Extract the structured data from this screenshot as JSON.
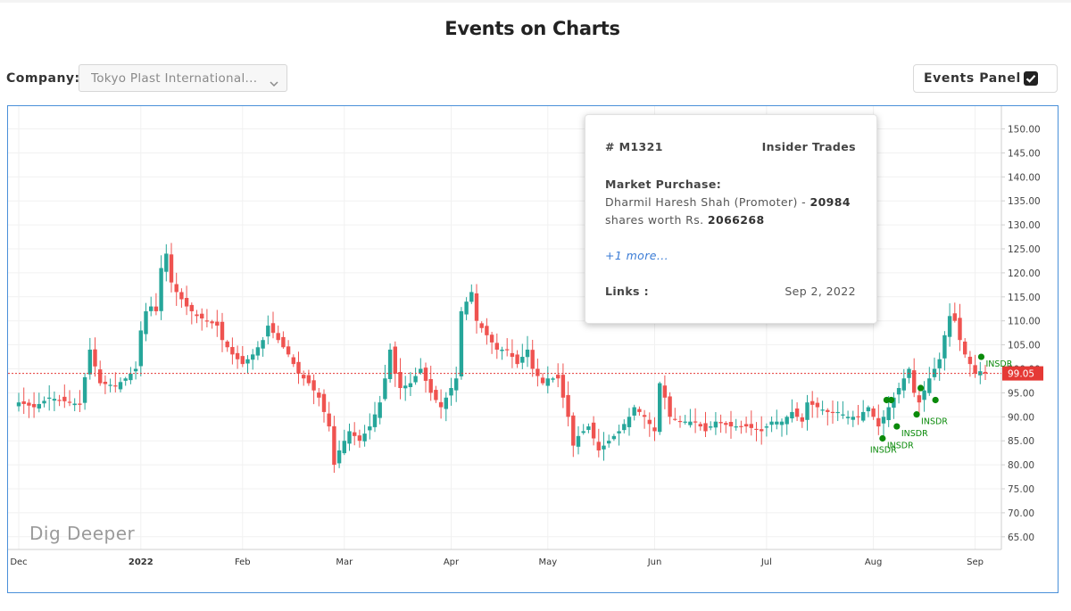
{
  "page": {
    "title": "Events on Charts"
  },
  "controls": {
    "company_label": "Company:",
    "company_value": "Tokyo Plast International...",
    "events_panel_label": "Events Panel",
    "events_panel_checked": true
  },
  "tooltip": {
    "id": "# M1321",
    "type": "Insider Trades",
    "heading": "Market Purchase:",
    "line1_text": "Dharmil Haresh Shah (Promoter) - ",
    "line1_bold": "20984",
    "line2_text": "shares worth Rs. ",
    "line2_bold": "2066268",
    "more": "+1 more...",
    "links_label": "Links :",
    "date": "Sep 2, 2022"
  },
  "watermark": "Dig Deeper",
  "colors": {
    "up": "#26a69a",
    "down": "#ef5350",
    "event": "#0a8a0a",
    "price_line": "#e53935",
    "frame": "#4a90d9"
  },
  "chart_data": {
    "type": "candlestick",
    "y_ticks": [
      "150.00",
      "145.00",
      "140.00",
      "135.00",
      "130.00",
      "125.00",
      "120.00",
      "115.00",
      "110.00",
      "105.00",
      "100.00",
      "95.00",
      "90.00",
      "85.00",
      "80.00",
      "75.00",
      "70.00",
      "65.00"
    ],
    "ylim": [
      61,
      152
    ],
    "x_ticks": [
      {
        "label": "Dec",
        "bold": false,
        "i": 0
      },
      {
        "label": "2022",
        "bold": true,
        "i": 24
      },
      {
        "label": "Feb",
        "bold": false,
        "i": 44
      },
      {
        "label": "Mar",
        "bold": false,
        "i": 64
      },
      {
        "label": "Apr",
        "bold": false,
        "i": 85
      },
      {
        "label": "May",
        "bold": false,
        "i": 104
      },
      {
        "label": "Jun",
        "bold": false,
        "i": 125
      },
      {
        "label": "Jul",
        "bold": false,
        "i": 147
      },
      {
        "label": "Aug",
        "bold": false,
        "i": 168
      },
      {
        "label": "Sep",
        "bold": false,
        "i": 188
      }
    ],
    "last_price": "99.05",
    "last_price_value": 99.05,
    "anchors": [
      [
        0,
        93
      ],
      [
        3,
        92
      ],
      [
        6,
        94
      ],
      [
        10,
        93
      ],
      [
        12,
        92.5
      ],
      [
        14,
        104
      ],
      [
        16,
        97
      ],
      [
        19,
        96.5
      ],
      [
        21,
        98
      ],
      [
        23,
        100
      ],
      [
        24,
        108
      ],
      [
        25,
        112
      ],
      [
        26,
        113
      ],
      [
        27,
        112
      ],
      [
        28,
        121
      ],
      [
        29,
        124
      ],
      [
        30,
        118
      ],
      [
        31,
        116
      ],
      [
        33,
        113
      ],
      [
        35,
        111
      ],
      [
        37,
        110
      ],
      [
        39,
        109
      ],
      [
        40,
        106
      ],
      [
        42,
        103
      ],
      [
        44,
        101
      ],
      [
        46,
        103
      ],
      [
        48,
        106
      ],
      [
        49,
        109
      ],
      [
        51,
        106
      ],
      [
        53,
        103
      ],
      [
        55,
        99
      ],
      [
        57,
        97
      ],
      [
        59,
        94
      ],
      [
        61,
        88
      ],
      [
        62,
        80
      ],
      [
        63,
        83
      ],
      [
        65,
        87
      ],
      [
        67,
        85
      ],
      [
        69,
        88
      ],
      [
        71,
        93
      ],
      [
        72,
        98
      ],
      [
        73,
        104
      ],
      [
        74,
        99
      ],
      [
        75,
        96
      ],
      [
        77,
        97
      ],
      [
        79,
        100
      ],
      [
        81,
        95
      ],
      [
        83,
        92
      ],
      [
        85,
        96
      ],
      [
        86,
        98
      ],
      [
        87,
        112
      ],
      [
        88,
        114
      ],
      [
        89,
        116
      ],
      [
        90,
        110
      ],
      [
        92,
        107
      ],
      [
        94,
        104
      ],
      [
        96,
        104
      ],
      [
        98,
        101
      ],
      [
        100,
        104
      ],
      [
        101,
        100
      ],
      [
        103,
        97
      ],
      [
        104,
        98
      ],
      [
        106,
        98
      ],
      [
        108,
        90
      ],
      [
        109,
        84
      ],
      [
        110,
        86
      ],
      [
        112,
        88
      ],
      [
        114,
        83
      ],
      [
        116,
        85
      ],
      [
        118,
        87
      ],
      [
        120,
        90
      ],
      [
        121,
        92
      ],
      [
        123,
        90
      ],
      [
        125,
        87
      ],
      [
        126,
        97
      ],
      [
        127,
        94
      ],
      [
        128,
        90
      ],
      [
        130,
        89
      ],
      [
        133,
        89
      ],
      [
        135,
        87
      ],
      [
        137,
        89
      ],
      [
        140,
        88
      ],
      [
        143,
        88
      ],
      [
        146,
        87
      ],
      [
        148,
        89
      ],
      [
        150,
        89
      ],
      [
        152,
        91
      ],
      [
        154,
        89
      ],
      [
        155,
        93
      ],
      [
        157,
        92
      ],
      [
        159,
        91
      ],
      [
        161,
        91
      ],
      [
        163,
        90
      ],
      [
        165,
        90
      ],
      [
        167,
        92
      ],
      [
        169,
        88
      ],
      [
        171,
        92
      ],
      [
        173,
        96
      ],
      [
        175,
        100
      ],
      [
        176,
        95
      ],
      [
        177,
        93
      ],
      [
        179,
        98
      ],
      [
        181,
        102
      ],
      [
        182,
        107
      ],
      [
        183,
        111
      ],
      [
        184,
        110
      ],
      [
        185,
        106
      ],
      [
        186,
        103
      ],
      [
        187,
        101
      ],
      [
        188,
        99
      ],
      [
        189,
        99.5
      ],
      [
        190,
        99.05
      ]
    ],
    "events": [
      {
        "i": 169.8,
        "price": 85.5,
        "label": "INSDR"
      },
      {
        "i": 170.6,
        "price": 93.5,
        "label": ""
      },
      {
        "i": 171.5,
        "price": 93.5,
        "label": ""
      },
      {
        "i": 172.6,
        "price": 88,
        "label": "INSDR"
      },
      {
        "i": 176.5,
        "price": 90.5,
        "label": "INSDR"
      },
      {
        "i": 177.3,
        "price": 96,
        "label": ""
      },
      {
        "i": 180.2,
        "price": 93.5,
        "label": ""
      },
      {
        "i": 189.2,
        "price": 102.5,
        "label": "INSDR"
      }
    ]
  }
}
